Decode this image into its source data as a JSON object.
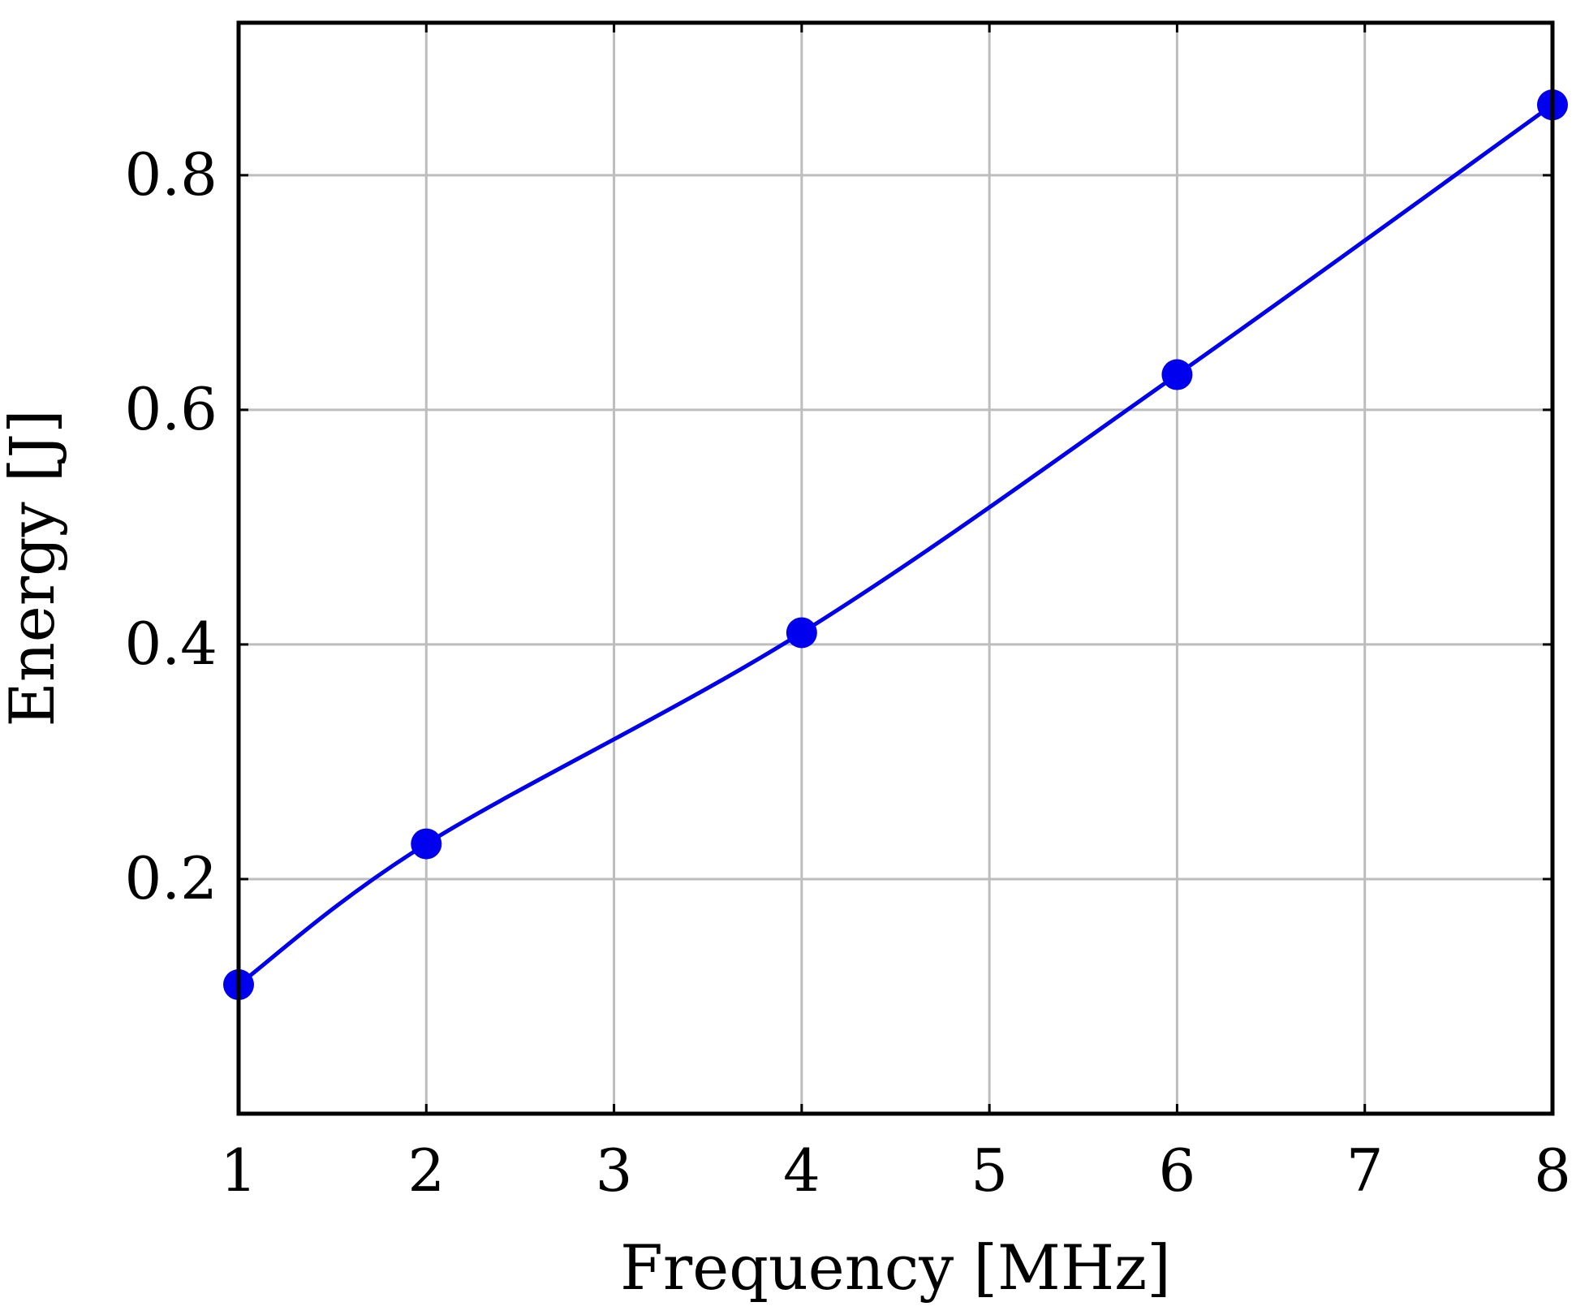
{
  "chart_data": {
    "type": "line",
    "title": "",
    "xlabel": "Frequency [MHz]",
    "ylabel": "Energy [J]",
    "xlim": [
      1,
      8
    ],
    "ylim": [
      0.0,
      0.93
    ],
    "x_ticks": [
      1,
      2,
      3,
      4,
      5,
      6,
      7,
      8
    ],
    "y_ticks": [
      0.2,
      0.4,
      0.6,
      0.8
    ],
    "x_tick_labels": [
      "1",
      "2",
      "3",
      "4",
      "5",
      "6",
      "7",
      "8"
    ],
    "y_tick_labels": [
      "0.2",
      "0.4",
      "0.6",
      "0.8"
    ],
    "grid": true,
    "smooth": true,
    "series": [
      {
        "color": "#0000ee",
        "marker": "circle",
        "x": [
          1,
          2,
          4,
          6,
          8
        ],
        "y": [
          0.11,
          0.23,
          0.41,
          0.63,
          0.86
        ]
      }
    ]
  }
}
